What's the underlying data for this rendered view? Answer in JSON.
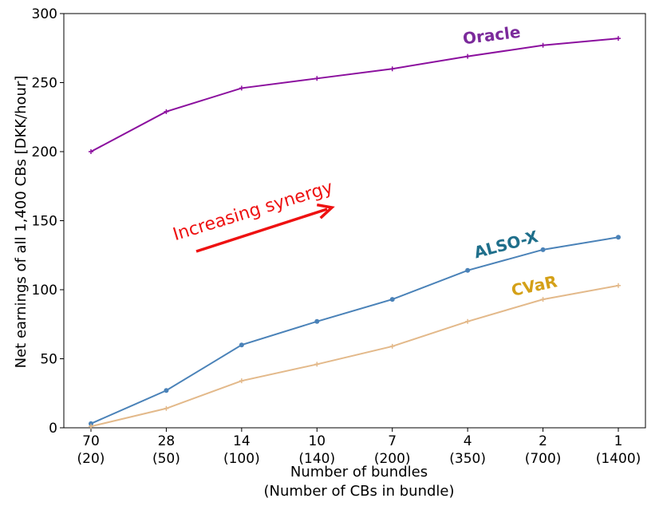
{
  "chart_data": {
    "type": "line",
    "title": "",
    "xlabel_line1": "Number of bundles",
    "xlabel_line2": "(Number of CBs in bundle)",
    "ylabel": "Net earnings of all 1,400 CBs [DKK/hour]",
    "ylim": [
      0,
      300
    ],
    "yticks": [
      0,
      50,
      100,
      150,
      200,
      250,
      300
    ],
    "categories": [
      "70",
      "28",
      "14",
      "10",
      "7",
      "4",
      "2",
      "1"
    ],
    "category_sublabels": [
      "(20)",
      "(50)",
      "(100)",
      "(140)",
      "(200)",
      "(350)",
      "(700)",
      "(1400)"
    ],
    "grid": false,
    "series": [
      {
        "name": "Oracle",
        "color": "#8b0f9e",
        "marker": "plus",
        "values": [
          200,
          229,
          246,
          253,
          260,
          269,
          277,
          282
        ]
      },
      {
        "name": "ALSO-X",
        "color": "#4a82b8",
        "marker": "circle",
        "values": [
          3,
          27,
          60,
          77,
          93,
          114,
          129,
          138
        ]
      },
      {
        "name": "CVaR",
        "color": "#e3b98a",
        "marker": "plus",
        "values": [
          1,
          14,
          34,
          46,
          59,
          77,
          93,
          103
        ]
      }
    ],
    "series_label_colors": {
      "Oracle": "#7b2a9b",
      "ALSO-X": "#1f6f8b",
      "CVaR": "#d4a017"
    },
    "annotation": {
      "text": "Increasing synergy",
      "color": "#ee1111"
    }
  }
}
